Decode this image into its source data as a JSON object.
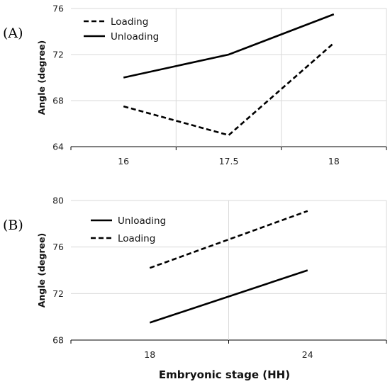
{
  "chart_data": [
    {
      "type": "line",
      "panel_label": "(A)",
      "categories": [
        "16",
        "17.5",
        "18"
      ],
      "ylabel": "Angle (degree)",
      "xlabel": "",
      "ylim": [
        64,
        76
      ],
      "yticks": [
        64,
        68,
        72,
        76
      ],
      "grid": true,
      "legend": "top-left",
      "series": [
        {
          "name": "Loading",
          "style": "dashed",
          "values": [
            67.5,
            65.0,
            73.0
          ]
        },
        {
          "name": "Unloading",
          "style": "solid",
          "values": [
            70.0,
            72.0,
            75.5
          ]
        }
      ]
    },
    {
      "type": "line",
      "panel_label": "(B)",
      "categories": [
        "18",
        "24"
      ],
      "ylabel": "Angle (degree)",
      "xlabel": "Embryonic stage (HH)",
      "ylim": [
        68,
        80
      ],
      "yticks": [
        68,
        72,
        76,
        80
      ],
      "grid": true,
      "legend": "top-left",
      "series": [
        {
          "name": "Unloading",
          "style": "solid",
          "values": [
            69.5,
            74.0
          ]
        },
        {
          "name": "Loading",
          "style": "dashed",
          "values": [
            74.2,
            79.1
          ]
        }
      ]
    }
  ]
}
